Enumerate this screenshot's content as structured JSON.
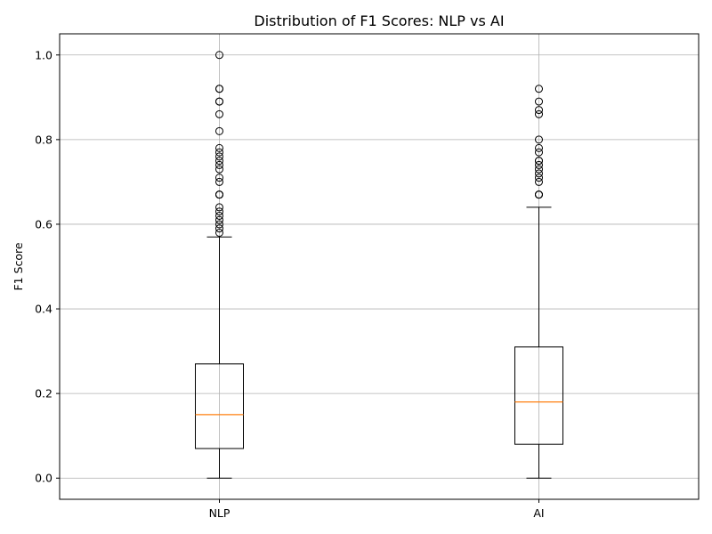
{
  "chart_data": {
    "type": "box",
    "title": "Distribution of F1 Scores: NLP vs AI",
    "xlabel": "",
    "ylabel": "F1 Score",
    "ylim": [
      -0.05,
      1.05
    ],
    "yticks": [
      0.0,
      0.2,
      0.4,
      0.6,
      0.8,
      1.0
    ],
    "ytick_labels": [
      "0.0",
      "0.2",
      "0.4",
      "0.6",
      "0.8",
      "1.0"
    ],
    "grid": true,
    "categories": [
      "NLP",
      "AI"
    ],
    "boxes": [
      {
        "name": "NLP",
        "whisker_low": 0.0,
        "q1": 0.07,
        "median": 0.15,
        "q3": 0.27,
        "whisker_high": 0.57,
        "outliers": [
          0.58,
          0.59,
          0.6,
          0.61,
          0.62,
          0.63,
          0.64,
          0.67,
          0.67,
          0.67,
          0.7,
          0.71,
          0.73,
          0.74,
          0.75,
          0.76,
          0.77,
          0.78,
          0.82,
          0.86,
          0.89,
          0.89,
          0.92,
          0.92,
          1.0
        ]
      },
      {
        "name": "AI",
        "whisker_low": 0.0,
        "q1": 0.08,
        "median": 0.18,
        "q3": 0.31,
        "whisker_high": 0.64,
        "outliers": [
          0.67,
          0.67,
          0.67,
          0.7,
          0.71,
          0.72,
          0.73,
          0.74,
          0.75,
          0.75,
          0.77,
          0.78,
          0.8,
          0.86,
          0.87,
          0.89,
          0.92
        ]
      }
    ],
    "colors": {
      "box_edge": "#000000",
      "median": "#ff7f0e",
      "grid": "#b0b0b0",
      "outlier_edge": "#000000"
    }
  }
}
